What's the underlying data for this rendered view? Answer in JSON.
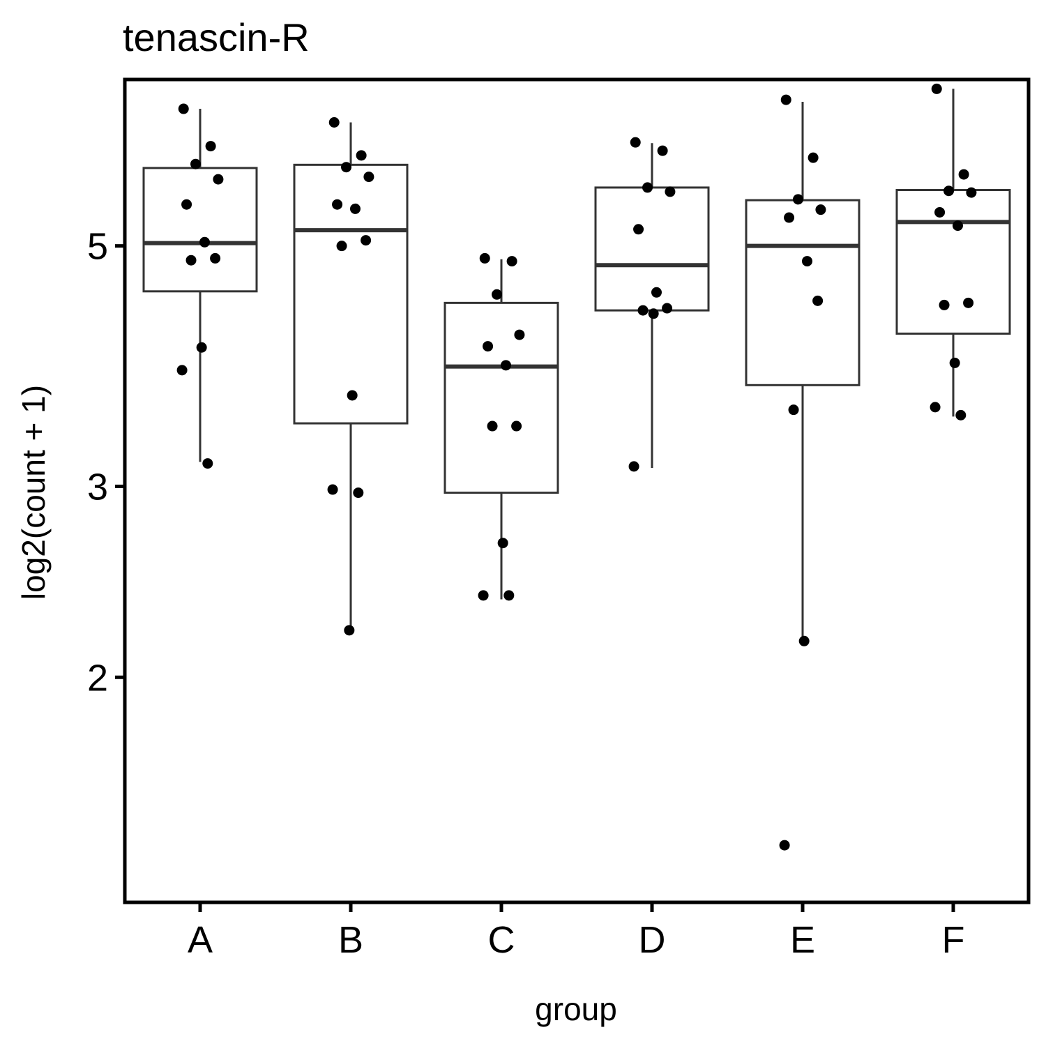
{
  "chart_data": {
    "type": "box",
    "title": "tenascin-R",
    "xlabel": "group",
    "ylabel": "log2(count + 1)",
    "y_scale": "log2",
    "ylim": [
      1.24,
      7.12
    ],
    "yticks": [
      2,
      3,
      5
    ],
    "ytick_labels": [
      "2",
      "3",
      "5"
    ],
    "categories": [
      "A",
      "B",
      "C",
      "D",
      "E",
      "F"
    ],
    "grid": false,
    "legend": "none",
    "boxes": [
      {
        "group": "A",
        "min": 3.16,
        "q1": 4.54,
        "median": 5.03,
        "q3": 5.9,
        "max": 6.69
      },
      {
        "group": "B",
        "min": 2.21,
        "q1": 3.43,
        "median": 5.17,
        "q3": 5.94,
        "max": 6.5
      },
      {
        "group": "C",
        "min": 2.36,
        "q1": 2.96,
        "median": 3.87,
        "q3": 4.43,
        "max": 4.86
      },
      {
        "group": "D",
        "min": 3.12,
        "q1": 4.36,
        "median": 4.8,
        "q3": 5.66,
        "max": 6.22
      },
      {
        "group": "E",
        "min": 2.16,
        "q1": 3.72,
        "median": 5.0,
        "q3": 5.51,
        "max": 6.79
      },
      {
        "group": "F",
        "min": 3.48,
        "q1": 4.15,
        "median": 5.26,
        "q3": 5.63,
        "max": 6.98
      }
    ],
    "points": [
      {
        "group": "A",
        "values": [
          6.69,
          6.18,
          5.95,
          5.76,
          5.46,
          5.04,
          4.87,
          4.85,
          4.03,
          3.84,
          3.15
        ]
      },
      {
        "group": "B",
        "values": [
          6.5,
          6.06,
          5.91,
          5.79,
          5.46,
          5.41,
          5.06,
          5.0,
          3.64,
          2.98,
          2.96,
          2.21
        ]
      },
      {
        "group": "C",
        "values": [
          4.87,
          4.84,
          4.51,
          4.14,
          4.04,
          3.88,
          3.41,
          3.41,
          2.66,
          2.38,
          2.38
        ]
      },
      {
        "group": "D",
        "values": [
          6.23,
          6.12,
          5.66,
          5.61,
          5.18,
          4.53,
          4.38,
          4.36,
          4.33,
          3.13
        ]
      },
      {
        "group": "E",
        "values": [
          6.82,
          6.03,
          5.52,
          5.4,
          5.31,
          4.84,
          4.45,
          3.53,
          2.16,
          1.4
        ]
      },
      {
        "group": "F",
        "values": [
          6.98,
          5.82,
          5.62,
          5.6,
          5.37,
          5.22,
          4.43,
          4.41,
          3.9,
          3.55,
          3.49
        ]
      }
    ],
    "style": {
      "box_stroke": "#333333",
      "point_color": "#000000",
      "frame_color": "#000000",
      "background": "#ffffff"
    }
  }
}
